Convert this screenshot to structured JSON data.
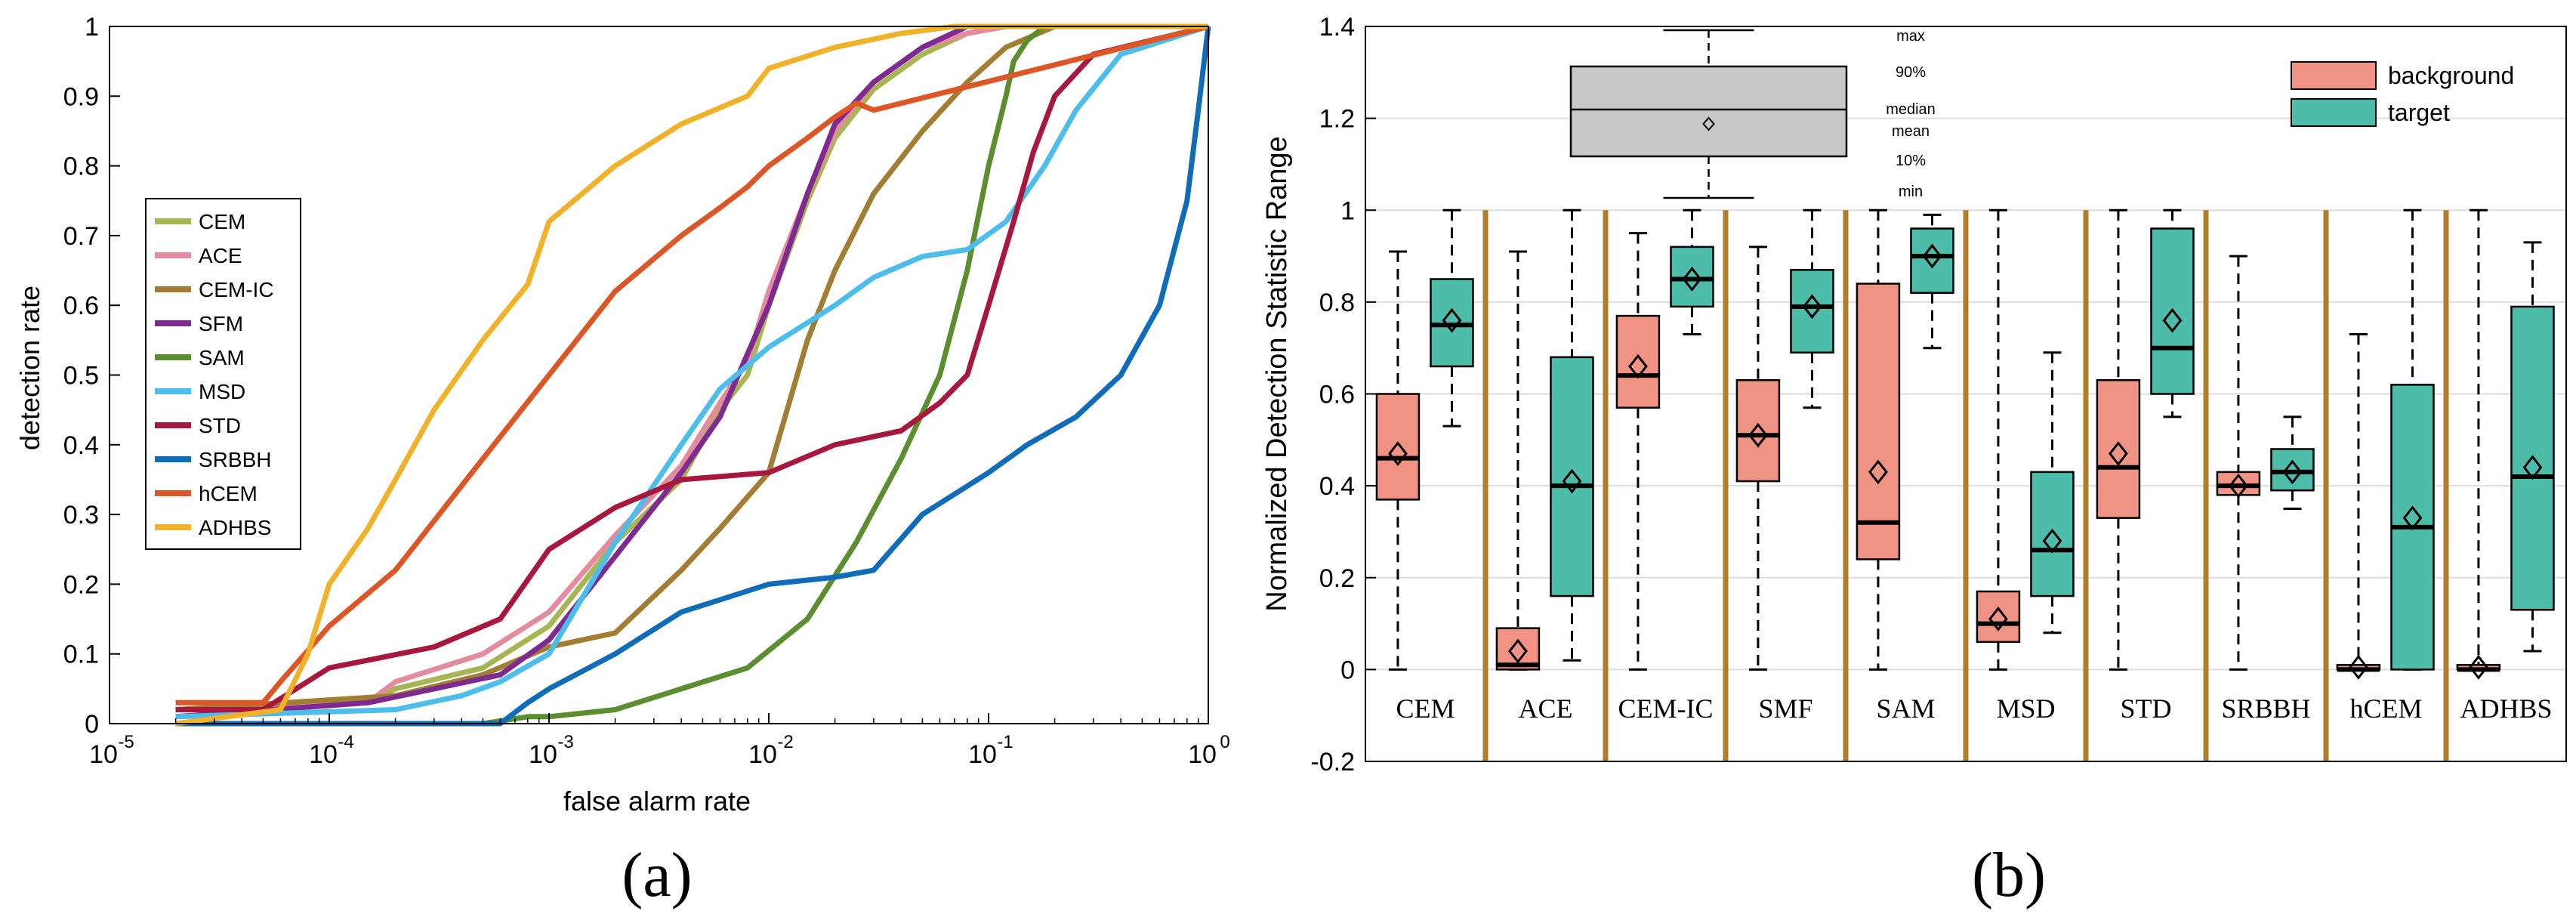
{
  "colors": {
    "CEM": "#A7B653",
    "ACE": "#E48C9E",
    "CEM-IC": "#A27E33",
    "SFM": "#7E2A91",
    "SAM": "#5A8E2E",
    "MSD": "#4DBEEC",
    "STD": "#A8183D",
    "SRBBH": "#0F6CB8",
    "hCEM": "#DC5626",
    "ADHBS": "#F1B22A",
    "background": "#F09385",
    "target": "#4DBCA8",
    "separator": "#B07D2A",
    "axis": "#000000",
    "grid": "#DDDDDD",
    "inset_fill": "#C8C8C8"
  },
  "chart_data": [
    {
      "type": "line",
      "panel_label": "(a)",
      "xlabel": "false alarm rate",
      "ylabel": "detection rate",
      "xscale": "log",
      "xlim": [
        1e-05,
        1
      ],
      "ylim": [
        0,
        1
      ],
      "xtick_bases": [
        "10",
        "10",
        "10",
        "10",
        "10",
        "10"
      ],
      "xtick_exps": [
        "-5",
        "-4",
        "-3",
        "-2",
        "-1",
        "0"
      ],
      "xtick_values": [
        1e-05,
        0.0001,
        0.001,
        0.01,
        0.1,
        1
      ],
      "ytick_labels": [
        "0",
        "0.1",
        "0.2",
        "0.3",
        "0.4",
        "0.5",
        "0.6",
        "0.7",
        "0.8",
        "0.9",
        "1"
      ],
      "legend_position": "left",
      "series": [
        {
          "name": "CEM",
          "x": [
            2e-05,
            0.00015,
            0.0002,
            0.0005,
            0.001,
            0.002,
            0.004,
            0.006,
            0.008,
            0.01,
            0.015,
            0.02,
            0.03,
            0.05,
            0.08,
            0.12,
            1
          ],
          "y": [
            0.02,
            0.03,
            0.05,
            0.08,
            0.14,
            0.26,
            0.35,
            0.45,
            0.5,
            0.6,
            0.75,
            0.84,
            0.91,
            0.96,
            0.99,
            1,
            1
          ]
        },
        {
          "name": "ACE",
          "x": [
            2e-05,
            0.00015,
            0.0002,
            0.0005,
            0.001,
            0.002,
            0.004,
            0.006,
            0.008,
            0.01,
            0.015,
            0.02,
            0.03,
            0.05,
            0.08,
            0.12,
            1
          ],
          "y": [
            0.02,
            0.03,
            0.06,
            0.1,
            0.16,
            0.27,
            0.37,
            0.46,
            0.52,
            0.62,
            0.76,
            0.85,
            0.92,
            0.97,
            0.99,
            1,
            1
          ]
        },
        {
          "name": "CEM-IC",
          "x": [
            2e-05,
            0.0002,
            0.0005,
            0.001,
            0.002,
            0.004,
            0.006,
            0.01,
            0.015,
            0.02,
            0.03,
            0.05,
            0.08,
            0.12,
            0.2,
            1
          ],
          "y": [
            0.02,
            0.04,
            0.07,
            0.11,
            0.13,
            0.22,
            0.28,
            0.36,
            0.55,
            0.65,
            0.76,
            0.85,
            0.92,
            0.97,
            1,
            1
          ]
        },
        {
          "name": "SFM",
          "x": [
            2e-05,
            0.00015,
            0.0003,
            0.0006,
            0.001,
            0.002,
            0.004,
            0.006,
            0.01,
            0.015,
            0.02,
            0.03,
            0.05,
            0.08,
            0.12,
            1
          ],
          "y": [
            0.01,
            0.03,
            0.05,
            0.07,
            0.12,
            0.24,
            0.36,
            0.44,
            0.6,
            0.76,
            0.86,
            0.92,
            0.97,
            1,
            1,
            1
          ]
        },
        {
          "name": "SAM",
          "x": [
            2e-05,
            0.0005,
            0.0008,
            0.001,
            0.002,
            0.004,
            0.008,
            0.015,
            0.025,
            0.04,
            0.06,
            0.08,
            0.1,
            0.12,
            0.13,
            0.15,
            0.18,
            1
          ],
          "y": [
            0,
            0,
            0.01,
            0.01,
            0.02,
            0.05,
            0.08,
            0.15,
            0.26,
            0.38,
            0.5,
            0.65,
            0.8,
            0.9,
            0.95,
            0.98,
            1,
            1
          ]
        },
        {
          "name": "MSD",
          "x": [
            2e-05,
            0.0002,
            0.0004,
            0.0006,
            0.001,
            0.002,
            0.004,
            0.006,
            0.01,
            0.02,
            0.03,
            0.05,
            0.08,
            0.12,
            0.18,
            0.25,
            0.4,
            1
          ],
          "y": [
            0.01,
            0.02,
            0.04,
            0.06,
            0.1,
            0.26,
            0.4,
            0.48,
            0.54,
            0.6,
            0.64,
            0.67,
            0.68,
            0.72,
            0.8,
            0.88,
            0.96,
            1
          ]
        },
        {
          "name": "STD",
          "x": [
            2e-05,
            5e-05,
            0.0001,
            0.0003,
            0.0006,
            0.001,
            0.002,
            0.004,
            0.01,
            0.02,
            0.04,
            0.06,
            0.08,
            0.1,
            0.13,
            0.16,
            0.2,
            0.3,
            1
          ],
          "y": [
            0.02,
            0.02,
            0.08,
            0.11,
            0.15,
            0.25,
            0.31,
            0.35,
            0.36,
            0.4,
            0.42,
            0.46,
            0.5,
            0.6,
            0.72,
            0.82,
            0.9,
            0.96,
            1
          ]
        },
        {
          "name": "SRBBH",
          "x": [
            2e-05,
            0.0006,
            0.0008,
            0.001,
            0.002,
            0.004,
            0.01,
            0.02,
            0.03,
            0.05,
            0.1,
            0.15,
            0.25,
            0.4,
            0.6,
            0.8,
            0.9,
            1
          ],
          "y": [
            0,
            0,
            0.03,
            0.05,
            0.1,
            0.16,
            0.2,
            0.21,
            0.22,
            0.3,
            0.36,
            0.4,
            0.44,
            0.5,
            0.6,
            0.75,
            0.88,
            1
          ]
        },
        {
          "name": "hCEM",
          "x": [
            2e-05,
            5e-05,
            6e-05,
            0.0001,
            0.0002,
            0.0005,
            0.001,
            0.002,
            0.004,
            0.006,
            0.008,
            0.01,
            0.015,
            0.02,
            0.025,
            0.03,
            1
          ],
          "y": [
            0.03,
            0.03,
            0.06,
            0.14,
            0.22,
            0.38,
            0.5,
            0.62,
            0.7,
            0.74,
            0.77,
            0.8,
            0.84,
            0.87,
            0.89,
            0.88,
            1
          ]
        },
        {
          "name": "ADHBS",
          "x": [
            2e-05,
            6e-05,
            8e-05,
            0.0001,
            0.00015,
            0.0002,
            0.0003,
            0.0005,
            0.0008,
            0.001,
            0.002,
            0.004,
            0.008,
            0.01,
            0.02,
            0.04,
            0.07,
            0.1,
            1
          ],
          "y": [
            0,
            0.02,
            0.1,
            0.2,
            0.28,
            0.35,
            0.45,
            0.55,
            0.63,
            0.72,
            0.8,
            0.86,
            0.9,
            0.94,
            0.97,
            0.99,
            1,
            1,
            1
          ]
        }
      ]
    },
    {
      "type": "box",
      "panel_label": "(b)",
      "ylabel": "Normalized Detection Statistic Range",
      "ylim": [
        -0.2,
        1.4
      ],
      "ytick_labels": [
        "-0.2",
        "0",
        "0.2",
        "0.4",
        "0.6",
        "0.8",
        "1",
        "1.2",
        "1.4"
      ],
      "ytick_values": [
        -0.2,
        0,
        0.2,
        0.4,
        0.6,
        0.8,
        1,
        1.2,
        1.4
      ],
      "grid": true,
      "categories": [
        "CEM",
        "ACE",
        "CEM-IC",
        "SMF",
        "SAM",
        "MSD",
        "STD",
        "SRBBH",
        "hCEM",
        "ADHBS"
      ],
      "legend": [
        "background",
        "target"
      ],
      "legend_position": "top-right",
      "inset_labels": [
        "max",
        "90%",
        "median",
        "mean",
        "10%",
        "min"
      ],
      "groups": [
        {
          "background": {
            "min": 0,
            "p10": 0.37,
            "median": 0.46,
            "p90": 0.6,
            "max": 0.91,
            "mean": 0.47
          },
          "target": {
            "min": 0.53,
            "p10": 0.66,
            "median": 0.75,
            "p90": 0.85,
            "max": 1,
            "mean": 0.76
          }
        },
        {
          "background": {
            "min": 0,
            "p10": 0,
            "median": 0.01,
            "p90": 0.09,
            "max": 0.91,
            "mean": 0.04
          },
          "target": {
            "min": 0.02,
            "p10": 0.16,
            "median": 0.4,
            "p90": 0.68,
            "max": 1,
            "mean": 0.41
          }
        },
        {
          "background": {
            "min": 0,
            "p10": 0.57,
            "median": 0.64,
            "p90": 0.77,
            "max": 0.95,
            "mean": 0.66
          },
          "target": {
            "min": 0.73,
            "p10": 0.79,
            "median": 0.85,
            "p90": 0.92,
            "max": 1,
            "mean": 0.85
          }
        },
        {
          "background": {
            "min": 0,
            "p10": 0.41,
            "median": 0.51,
            "p90": 0.63,
            "max": 0.92,
            "mean": 0.51
          },
          "target": {
            "min": 0.57,
            "p10": 0.69,
            "median": 0.79,
            "p90": 0.87,
            "max": 1,
            "mean": 0.79
          }
        },
        {
          "background": {
            "min": 0,
            "p10": 0.24,
            "median": 0.32,
            "p90": 0.84,
            "max": 1,
            "mean": 0.43
          },
          "target": {
            "min": 0.7,
            "p10": 0.82,
            "median": 0.9,
            "p90": 0.96,
            "max": 0.99,
            "mean": 0.9
          }
        },
        {
          "background": {
            "min": 0,
            "p10": 0.06,
            "median": 0.1,
            "p90": 0.17,
            "max": 1,
            "mean": 0.11
          },
          "target": {
            "min": 0.08,
            "p10": 0.16,
            "median": 0.26,
            "p90": 0.43,
            "max": 0.69,
            "mean": 0.28
          }
        },
        {
          "background": {
            "min": 0,
            "p10": 0.33,
            "median": 0.44,
            "p90": 0.63,
            "max": 1,
            "mean": 0.47
          },
          "target": {
            "min": 0.55,
            "p10": 0.6,
            "median": 0.7,
            "p90": 0.96,
            "max": 1,
            "mean": 0.76
          }
        },
        {
          "background": {
            "min": 0,
            "p10": 0.38,
            "median": 0.4,
            "p90": 0.43,
            "max": 0.9,
            "mean": 0.4
          },
          "target": {
            "min": 0.35,
            "p10": 0.39,
            "median": 0.43,
            "p90": 0.48,
            "max": 0.55,
            "mean": 0.43
          }
        },
        {
          "background": {
            "min": 0,
            "p10": 0,
            "median": 0,
            "p90": 0.01,
            "max": 0.73,
            "mean": 0.005
          },
          "target": {
            "min": 0,
            "p10": 0,
            "median": 0.31,
            "p90": 0.62,
            "max": 1,
            "mean": 0.33
          }
        },
        {
          "background": {
            "min": 0,
            "p10": 0,
            "median": 0,
            "p90": 0.01,
            "max": 1,
            "mean": 0.005
          },
          "target": {
            "min": 0.04,
            "p10": 0.13,
            "median": 0.42,
            "p90": 0.79,
            "max": 0.93,
            "mean": 0.44
          }
        }
      ]
    }
  ]
}
